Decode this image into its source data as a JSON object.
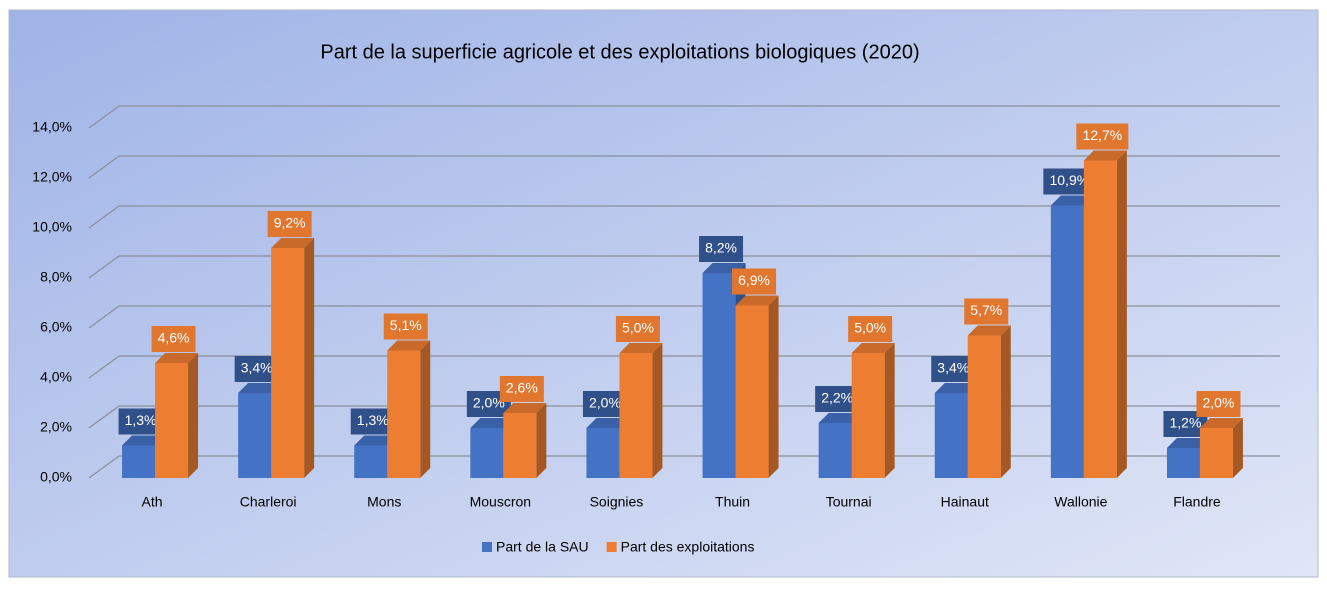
{
  "chart_data": {
    "type": "bar3d",
    "title": "Part de la superficie agricole et des exploitations biologiques (2020)",
    "categories": [
      "Ath",
      "Charleroi",
      "Mons",
      "Mouscron",
      "Soignies",
      "Thuin",
      "Tournai",
      "Hainaut",
      "Wallonie",
      "Flandre"
    ],
    "series": [
      {
        "name": "Part de la SAU",
        "color": "#4472c4",
        "values": [
          1.3,
          3.4,
          1.3,
          2.0,
          2.0,
          8.2,
          2.2,
          3.4,
          10.9,
          1.2
        ],
        "value_labels": [
          "1,3%",
          "3,4%",
          "1,3%",
          "2,0%",
          "2,0%",
          "8,2%",
          "2,2%",
          "3,4%",
          "10,9%",
          "1,2%"
        ]
      },
      {
        "name": "Part des exploitations",
        "color": "#ed7d31",
        "values": [
          4.6,
          9.2,
          5.1,
          2.6,
          5.0,
          6.9,
          5.0,
          5.7,
          12.7,
          2.0
        ],
        "value_labels": [
          "4,6%",
          "9,2%",
          "5,1%",
          "2,6%",
          "5,0%",
          "6,9%",
          "5,0%",
          "5,7%",
          "12,7%",
          "2,0%"
        ]
      }
    ],
    "ylim": [
      0,
      14
    ],
    "yticks": [
      {
        "value": 0,
        "label": "0,0%"
      },
      {
        "value": 2,
        "label": "2,0%"
      },
      {
        "value": 4,
        "label": "4,0%"
      },
      {
        "value": 6,
        "label": "6,0%"
      },
      {
        "value": 8,
        "label": "8,0%"
      },
      {
        "value": 10,
        "label": "10,0%"
      },
      {
        "value": 12,
        "label": "12,0%"
      },
      {
        "value": 14,
        "label": "14,0%"
      }
    ],
    "grid": true,
    "legend": "bottom"
  }
}
